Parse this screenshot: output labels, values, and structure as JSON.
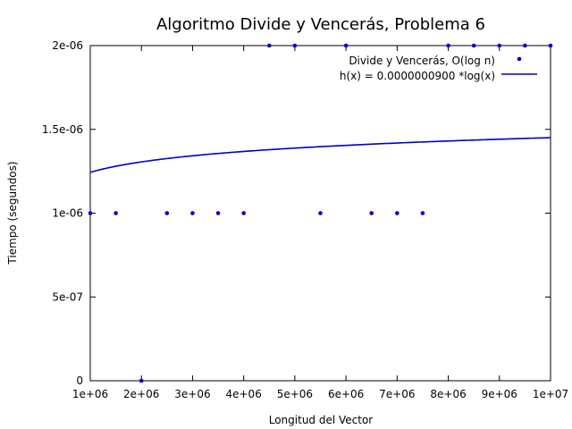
{
  "chart_data": {
    "type": "scatter",
    "title": "Algoritmo Divide y Vencerás, Problema 6",
    "xlabel": "Longitud del Vector",
    "ylabel": "Tiempo (segundos)",
    "xlim": [
      1000000,
      10000000
    ],
    "ylim": [
      0,
      2e-06
    ],
    "grid": false,
    "legend_position": "top-right",
    "x_ticks": [
      {
        "value": 1000000,
        "label": "1e+06"
      },
      {
        "value": 2000000,
        "label": "2e+06"
      },
      {
        "value": 3000000,
        "label": "3e+06"
      },
      {
        "value": 4000000,
        "label": "4e+06"
      },
      {
        "value": 5000000,
        "label": "5e+06"
      },
      {
        "value": 6000000,
        "label": "6e+06"
      },
      {
        "value": 7000000,
        "label": "7e+06"
      },
      {
        "value": 8000000,
        "label": "8e+06"
      },
      {
        "value": 9000000,
        "label": "9e+06"
      },
      {
        "value": 10000000,
        "label": "1e+07"
      }
    ],
    "y_ticks": [
      {
        "value": 0,
        "label": "0"
      },
      {
        "value": 5e-07,
        "label": "5e-07"
      },
      {
        "value": 1e-06,
        "label": "1e-06"
      },
      {
        "value": 1.5e-06,
        "label": "1.5e-06"
      },
      {
        "value": 2e-06,
        "label": "2e-06"
      }
    ],
    "series": [
      {
        "name": "Divide y Vencerás, O(log n)",
        "type": "scatter",
        "color": "#0000cc",
        "x": [
          1000000,
          1500000,
          2000000,
          2500000,
          3000000,
          3500000,
          4000000,
          4500000,
          5000000,
          5500000,
          6000000,
          6500000,
          7000000,
          7500000,
          8000000,
          8500000,
          9000000,
          9500000,
          10000000
        ],
        "y": [
          1e-06,
          1e-06,
          0,
          1e-06,
          1e-06,
          1e-06,
          1e-06,
          2e-06,
          2e-06,
          1e-06,
          2e-06,
          1e-06,
          1e-06,
          1e-06,
          2e-06,
          2e-06,
          2e-06,
          2e-06,
          2e-06
        ]
      },
      {
        "name": "h(x) = 0.0000000900 *log(x)",
        "type": "line",
        "color": "#0000cc",
        "coefficient": 9e-08,
        "function": "log"
      }
    ]
  }
}
